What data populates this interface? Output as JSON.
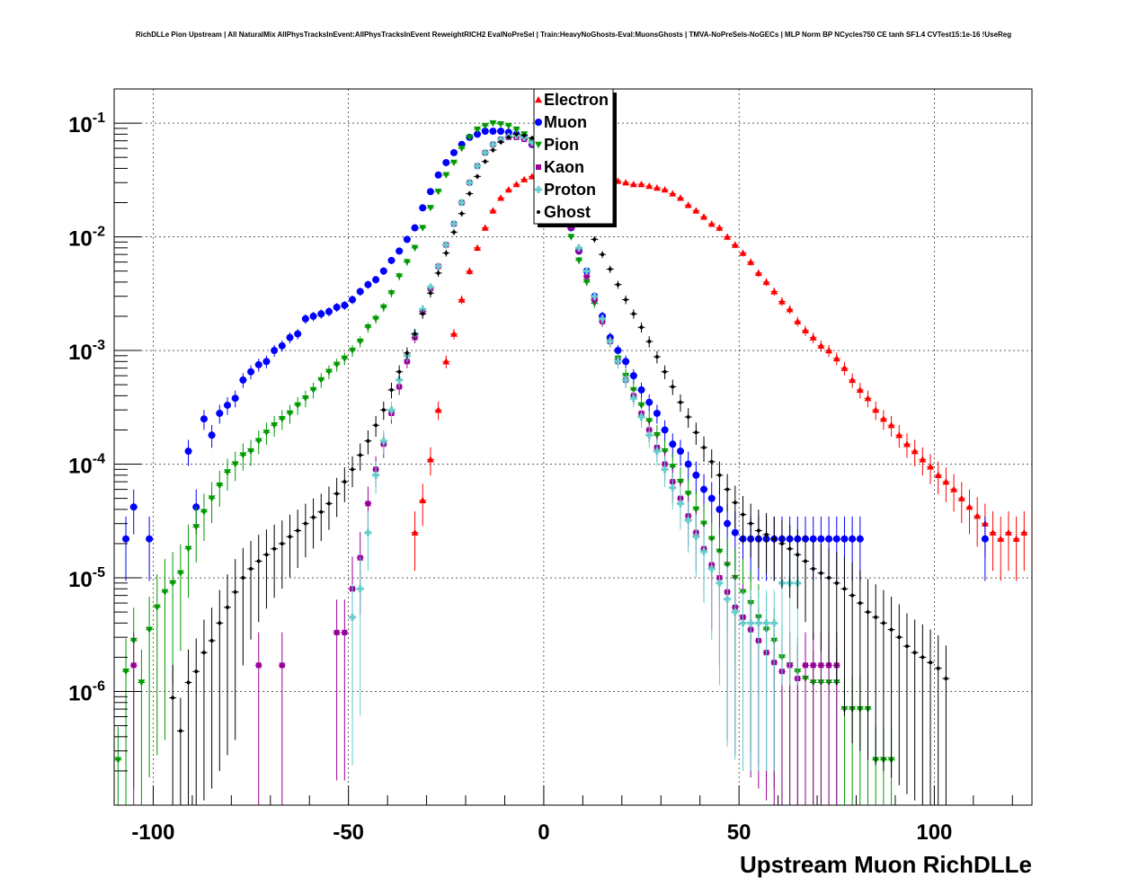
{
  "chart_data": {
    "type": "scatter",
    "title": "RichDLLe Pion Upstream | All NaturalMix AllPhysTracksInEvent:AllPhysTracksInEvent ReweightRICH2 EvalNoPreSel | Train:HeavyNoGhosts-Eval:MuonsGhosts | TMVA-NoPreSels-NoGECs | MLP Norm BP NCycles750 CE tanh SF1.4 CVTest15:1e-16 !UseReg",
    "xlabel": "Upstream Muon RichDLLe",
    "ylabel": "",
    "xlim": [
      -110,
      125
    ],
    "ylim": [
      1e-07,
      0.2
    ],
    "yscale": "log",
    "grid": true,
    "x_ticks": [
      -100,
      -50,
      0,
      50,
      100
    ],
    "x_tick_labels": [
      "-100",
      "-50",
      "0",
      "50",
      "100"
    ],
    "y_ticks": [
      0.1,
      0.01,
      0.001,
      0.0001,
      1e-05,
      1e-06
    ],
    "y_tick_labels": [
      {
        "base": "10",
        "exp": "-1"
      },
      {
        "base": "10",
        "exp": "-2"
      },
      {
        "base": "10",
        "exp": "-3"
      },
      {
        "base": "10",
        "exp": "-4"
      },
      {
        "base": "10",
        "exp": "-5"
      },
      {
        "base": "10",
        "exp": "-6"
      }
    ],
    "legend_position": "top-center",
    "series": [
      {
        "name": "Electron",
        "color": "#ff0000",
        "marker": "triangle-up",
        "x": [
          -33,
          -31,
          -29,
          -27,
          -25,
          -23,
          -21,
          -19,
          -17,
          -15,
          -13,
          -11,
          -9,
          -7,
          -5,
          -3,
          -1,
          1,
          3,
          5,
          7,
          9,
          11,
          13,
          15,
          17,
          19,
          21,
          23,
          25,
          27,
          29,
          31,
          33,
          35,
          37,
          39,
          41,
          43,
          45,
          47,
          49,
          51,
          53,
          55,
          57,
          59,
          61,
          63,
          65,
          67,
          69,
          71,
          73,
          75,
          77,
          79,
          81,
          83,
          85,
          87,
          89,
          91,
          93,
          95,
          97,
          99,
          101,
          103,
          105,
          107,
          109,
          111,
          113,
          115,
          117,
          119,
          121,
          123
        ],
        "y": [
          2.5e-05,
          4.8e-05,
          0.00011,
          0.0003,
          0.0008,
          0.0014,
          0.0028,
          0.005,
          0.008,
          0.012,
          0.017,
          0.022,
          0.026,
          0.029,
          0.032,
          0.034,
          0.034,
          0.034,
          0.034,
          0.033,
          0.032,
          0.031,
          0.03,
          0.03,
          0.031,
          0.031,
          0.031,
          0.03,
          0.029,
          0.029,
          0.028,
          0.027,
          0.026,
          0.024,
          0.022,
          0.019,
          0.017,
          0.015,
          0.013,
          0.012,
          0.01,
          0.0085,
          0.0072,
          0.006,
          0.0048,
          0.004,
          0.0033,
          0.0027,
          0.0023,
          0.0018,
          0.0015,
          0.0013,
          0.0011,
          0.001,
          0.00085,
          0.0007,
          0.00055,
          0.00045,
          0.00038,
          0.0003,
          0.00025,
          0.00022,
          0.00018,
          0.00015,
          0.00013,
          0.00011,
          9.5e-05,
          8e-05,
          7e-05,
          6e-05,
          5e-05,
          4.2e-05,
          3.5e-05,
          3e-05,
          2.5e-05,
          2.2e-05,
          2.5e-05,
          2.2e-05,
          2.5e-05
        ]
      },
      {
        "name": "Muon",
        "color": "#0000ff",
        "marker": "circle",
        "x": [
          -107,
          -105,
          -101,
          -91,
          -89,
          -87,
          -85,
          -83,
          -81,
          -79,
          -77,
          -75,
          -73,
          -71,
          -69,
          -67,
          -65,
          -63,
          -61,
          -59,
          -57,
          -55,
          -53,
          -51,
          -49,
          -47,
          -45,
          -43,
          -41,
          -39,
          -37,
          -35,
          -33,
          -31,
          -29,
          -27,
          -25,
          -23,
          -21,
          -19,
          -17,
          -15,
          -13,
          -11,
          -9,
          -7,
          -5,
          -3,
          -1,
          1,
          3,
          5,
          7,
          9,
          11,
          13,
          15,
          17,
          19,
          21,
          23,
          25,
          27,
          29,
          31,
          33,
          35,
          37,
          39,
          41,
          43,
          45,
          47,
          49,
          51,
          53,
          55,
          57,
          59,
          61,
          63,
          65,
          67,
          69,
          71,
          73,
          75,
          77,
          79,
          81,
          113
        ],
        "y": [
          2.2e-05,
          4.2e-05,
          2.2e-05,
          0.00013,
          4.2e-05,
          0.00025,
          0.00018,
          0.00028,
          0.00033,
          0.00038,
          0.00055,
          0.00065,
          0.00075,
          0.0008,
          0.001,
          0.0011,
          0.0013,
          0.0014,
          0.0019,
          0.002,
          0.0021,
          0.0022,
          0.0024,
          0.0025,
          0.0028,
          0.0033,
          0.0038,
          0.0042,
          0.005,
          0.0062,
          0.0075,
          0.0095,
          0.012,
          0.018,
          0.025,
          0.035,
          0.045,
          0.055,
          0.065,
          0.075,
          0.08,
          0.085,
          0.085,
          0.085,
          0.083,
          0.08,
          0.075,
          0.065,
          0.055,
          0.04,
          0.027,
          0.018,
          0.012,
          0.0075,
          0.005,
          0.003,
          0.002,
          0.0013,
          0.001,
          0.0008,
          0.0006,
          0.00045,
          0.00035,
          0.00028,
          0.0002,
          0.00015,
          0.00013,
          0.0001,
          8e-05,
          6e-05,
          5e-05,
          4e-05,
          3e-05,
          2.5e-05,
          2.2e-05,
          2.2e-05,
          2.2e-05,
          2.2e-05,
          2.2e-05,
          2.2e-05,
          2.2e-05,
          2.2e-05,
          2.2e-05,
          2.2e-05,
          2.2e-05,
          2.2e-05,
          2.2e-05,
          2.2e-05,
          2.2e-05,
          2.2e-05,
          2.2e-05
        ]
      },
      {
        "name": "Pion",
        "color": "#009900",
        "marker": "triangle-down",
        "x": [
          -109,
          -107,
          -105,
          -103,
          -101,
          -99,
          -97,
          -95,
          -93,
          -91,
          -89,
          -87,
          -85,
          -83,
          -81,
          -79,
          -77,
          -75,
          -73,
          -71,
          -69,
          -67,
          -65,
          -63,
          -61,
          -59,
          -57,
          -55,
          -53,
          -51,
          -49,
          -47,
          -45,
          -43,
          -41,
          -39,
          -37,
          -35,
          -33,
          -31,
          -29,
          -27,
          -25,
          -23,
          -21,
          -19,
          -17,
          -15,
          -13,
          -11,
          -9,
          -7,
          -5,
          -3,
          -1,
          1,
          3,
          5,
          7,
          9,
          11,
          13,
          15,
          17,
          19,
          21,
          23,
          25,
          27,
          29,
          31,
          33,
          35,
          37,
          39,
          41,
          43,
          45,
          47,
          49,
          51,
          53,
          55,
          57,
          59,
          61,
          63,
          65,
          67,
          69,
          71,
          73,
          75,
          77,
          79,
          81,
          83,
          85,
          87,
          89
        ],
        "y": [
          2.5e-07,
          1.5e-06,
          2.8e-06,
          1.2e-06,
          3.5e-06,
          5.5e-06,
          7.5e-06,
          9e-06,
          1.1e-05,
          1.8e-05,
          2.8e-05,
          3.8e-05,
          5e-05,
          6.5e-05,
          8.5e-05,
          0.0001,
          0.00012,
          0.00013,
          0.00016,
          0.00019,
          0.00022,
          0.00025,
          0.00028,
          0.00033,
          0.00038,
          0.00045,
          0.00055,
          0.00065,
          0.00075,
          0.00085,
          0.001,
          0.0012,
          0.0016,
          0.0019,
          0.0024,
          0.0032,
          0.0045,
          0.006,
          0.008,
          0.012,
          0.018,
          0.025,
          0.035,
          0.045,
          0.06,
          0.075,
          0.088,
          0.095,
          0.1,
          0.098,
          0.095,
          0.088,
          0.08,
          0.07,
          0.055,
          0.04,
          0.027,
          0.017,
          0.01,
          0.0062,
          0.004,
          0.0026,
          0.0018,
          0.0012,
          0.00085,
          0.0006,
          0.00045,
          0.00033,
          0.00024,
          0.00018,
          0.00013,
          9.5e-05,
          7e-05,
          5.5e-05,
          4e-05,
          3e-05,
          2.2e-05,
          1.7e-05,
          1.3e-05,
          1e-05,
          7.5e-06,
          6e-06,
          4.5e-06,
          3.5e-06,
          2.8e-06,
          2e-06,
          1.7e-06,
          1.5e-06,
          1.3e-06,
          1.2e-06,
          1.2e-06,
          1.2e-06,
          1.2e-06,
          7e-07,
          7e-07,
          7e-07,
          7e-07,
          2.5e-07,
          2.5e-07,
          2.5e-07
        ]
      },
      {
        "name": "Kaon",
        "color": "#990099",
        "marker": "square",
        "x": [
          -105,
          -73,
          -67,
          -53,
          -51,
          -49,
          -47,
          -45,
          -43,
          -41,
          -39,
          -37,
          -35,
          -33,
          -31,
          -29,
          -27,
          -25,
          -23,
          -21,
          -19,
          -17,
          -15,
          -13,
          -11,
          -9,
          -7,
          -5,
          -3,
          -1,
          1,
          3,
          5,
          7,
          9,
          11,
          13,
          15,
          17,
          19,
          21,
          23,
          25,
          27,
          29,
          31,
          33,
          35,
          37,
          39,
          41,
          43,
          45,
          47,
          49,
          51,
          53,
          55,
          57,
          59,
          61,
          63,
          65,
          67,
          69,
          71,
          73,
          75
        ],
        "y": [
          1.7e-06,
          1.7e-06,
          1.7e-06,
          3.3e-06,
          3.3e-06,
          8e-06,
          1.5e-05,
          4.5e-05,
          9e-05,
          0.00015,
          0.00028,
          0.00048,
          0.0008,
          0.0013,
          0.0022,
          0.0035,
          0.0055,
          0.0085,
          0.013,
          0.02,
          0.03,
          0.042,
          0.055,
          0.065,
          0.072,
          0.075,
          0.075,
          0.072,
          0.065,
          0.055,
          0.042,
          0.03,
          0.02,
          0.012,
          0.0075,
          0.0045,
          0.0028,
          0.0018,
          0.0012,
          0.0008,
          0.00055,
          0.0004,
          0.00028,
          0.0002,
          0.00014,
          0.0001,
          7e-05,
          5e-05,
          3.5e-05,
          2.5e-05,
          1.8e-05,
          1.3e-05,
          1e-05,
          7.5e-06,
          5.5e-06,
          4.5e-06,
          3.5e-06,
          2.8e-06,
          2.2e-06,
          1.8e-06,
          1.5e-06,
          1.7e-06,
          1.3e-06,
          1.7e-06,
          1.7e-06,
          1.7e-06,
          1.7e-06,
          1.7e-06
        ]
      },
      {
        "name": "Proton",
        "color": "#66cccc",
        "marker": "cross",
        "x": [
          -49,
          -47,
          -45,
          -43,
          -41,
          -39,
          -37,
          -35,
          -33,
          -31,
          -29,
          -27,
          -25,
          -23,
          -21,
          -19,
          -17,
          -15,
          -13,
          -11,
          -9,
          -7,
          -5,
          -3,
          -1,
          1,
          3,
          5,
          7,
          9,
          11,
          13,
          15,
          17,
          19,
          21,
          23,
          25,
          27,
          29,
          31,
          33,
          35,
          37,
          39,
          41,
          43,
          45,
          47,
          49,
          51,
          53,
          55,
          57,
          59,
          61,
          63,
          65
        ],
        "y": [
          4.5e-06,
          8e-06,
          2.5e-05,
          8e-05,
          0.00016,
          0.0003,
          0.00055,
          0.0009,
          0.0014,
          0.0023,
          0.0036,
          0.0055,
          0.0085,
          0.013,
          0.02,
          0.03,
          0.042,
          0.055,
          0.065,
          0.072,
          0.076,
          0.078,
          0.075,
          0.068,
          0.056,
          0.044,
          0.032,
          0.021,
          0.013,
          0.008,
          0.005,
          0.003,
          0.0019,
          0.0012,
          0.0008,
          0.00055,
          0.00038,
          0.00026,
          0.00018,
          0.00013,
          9e-05,
          6.2e-05,
          4.5e-05,
          3.2e-05,
          2.3e-05,
          1.7e-05,
          1.2e-05,
          9e-06,
          6.5e-06,
          5e-06,
          4e-06,
          4e-06,
          4e-06,
          4e-06,
          4e-06,
          9e-06,
          9e-06,
          9e-06
        ]
      },
      {
        "name": "Ghost",
        "color": "#000000",
        "marker": "plus",
        "x": [
          -95,
          -93,
          -91,
          -89,
          -87,
          -85,
          -83,
          -81,
          -79,
          -77,
          -75,
          -73,
          -71,
          -69,
          -67,
          -65,
          -63,
          -61,
          -59,
          -57,
          -55,
          -53,
          -51,
          -49,
          -47,
          -45,
          -43,
          -41,
          -39,
          -37,
          -35,
          -33,
          -31,
          -29,
          -27,
          -25,
          -23,
          -21,
          -19,
          -17,
          -15,
          -13,
          -11,
          -9,
          -7,
          -5,
          -3,
          -1,
          1,
          3,
          5,
          7,
          9,
          11,
          13,
          15,
          17,
          19,
          21,
          23,
          25,
          27,
          29,
          31,
          33,
          35,
          37,
          39,
          41,
          43,
          45,
          47,
          49,
          51,
          53,
          55,
          57,
          59,
          61,
          63,
          65,
          67,
          69,
          71,
          73,
          75,
          77,
          79,
          81,
          83,
          85,
          87,
          89,
          91,
          93,
          95,
          97,
          99,
          101,
          103
        ],
        "y": [
          8.8e-07,
          4.5e-07,
          1.2e-06,
          1.5e-06,
          2.2e-06,
          2.8e-06,
          4e-06,
          5.5e-06,
          7.5e-06,
          1e-05,
          1.2e-05,
          1.4e-05,
          1.6e-05,
          1.8e-05,
          2e-05,
          2.3e-05,
          2.6e-05,
          3e-05,
          3.4e-05,
          3.8e-05,
          4.5e-05,
          5.5e-05,
          7e-05,
          9e-05,
          0.00012,
          0.00016,
          0.00022,
          0.0003,
          0.00045,
          0.00065,
          0.00095,
          0.0014,
          0.0021,
          0.0032,
          0.0048,
          0.0072,
          0.011,
          0.016,
          0.024,
          0.034,
          0.046,
          0.058,
          0.068,
          0.075,
          0.08,
          0.078,
          0.074,
          0.066,
          0.056,
          0.045,
          0.034,
          0.025,
          0.018,
          0.013,
          0.0095,
          0.007,
          0.0052,
          0.0038,
          0.0028,
          0.0021,
          0.0016,
          0.0012,
          0.00088,
          0.00065,
          0.00048,
          0.00035,
          0.00026,
          0.00019,
          0.00014,
          0.000105,
          8e-05,
          6e-05,
          4.6e-05,
          3.6e-05,
          3e-05,
          2.6e-05,
          2.4e-05,
          2.2e-05,
          2e-05,
          1.8e-05,
          1.6e-05,
          1.4e-05,
          1.2e-05,
          1.1e-05,
          1e-05,
          9e-06,
          8e-06,
          7e-06,
          6e-06,
          5e-06,
          4.5e-06,
          4e-06,
          3.5e-06,
          3e-06,
          2.5e-06,
          2.2e-06,
          2e-06,
          1.8e-06,
          1.6e-06,
          1.3e-06
        ]
      }
    ]
  }
}
